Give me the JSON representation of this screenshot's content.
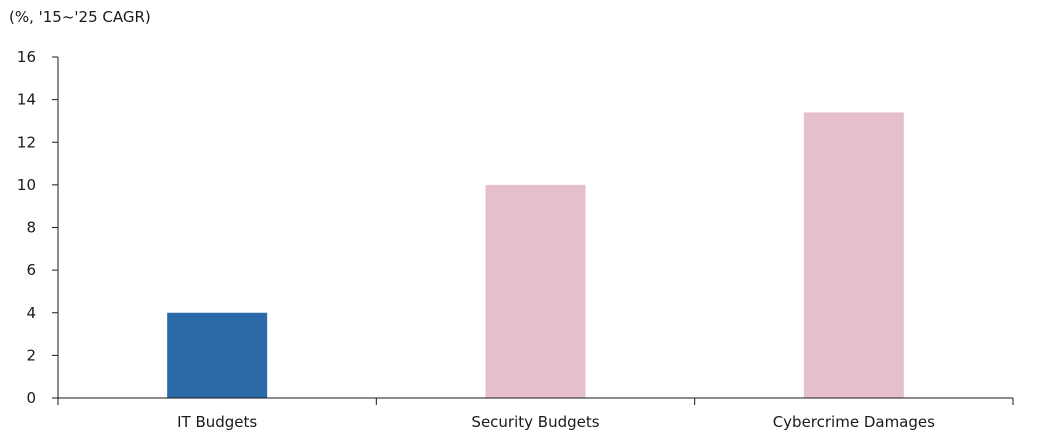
{
  "chart_data": {
    "type": "bar",
    "title": "",
    "unit_label": "(%, '15~'25 CAGR)",
    "xlabel": "",
    "ylabel": "",
    "categories": [
      "IT Budgets",
      "Security Budgets",
      "Cybercrime Damages"
    ],
    "values": [
      4.0,
      10.0,
      13.4
    ],
    "bar_colors": [
      "#2b6aa6",
      "#e5bfcb",
      "#e5bfcb"
    ],
    "ylim": [
      0,
      16
    ],
    "yticks": [
      0,
      2,
      4,
      6,
      8,
      10,
      12,
      14,
      16
    ],
    "grid": false,
    "legend": "none"
  }
}
